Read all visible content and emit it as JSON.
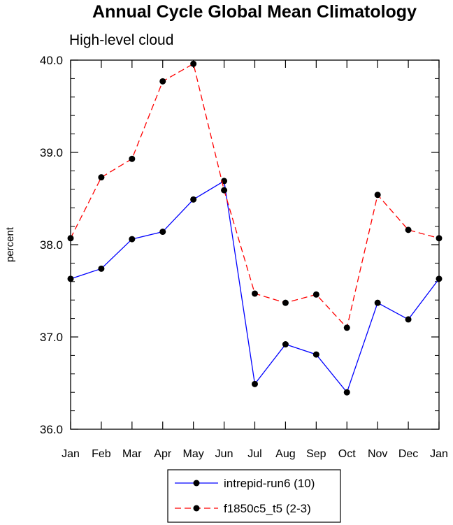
{
  "chart_data": {
    "type": "line",
    "title": "Annual Cycle Global Mean Climatology",
    "subtitle": "High-level cloud",
    "xlabel": "",
    "ylabel": "percent",
    "categories": [
      "Jan",
      "Feb",
      "Mar",
      "Apr",
      "May",
      "Jun",
      "Jul",
      "Aug",
      "Sep",
      "Oct",
      "Nov",
      "Dec",
      "Jan"
    ],
    "ylim": [
      36.0,
      40.0
    ],
    "yticks": [
      36.0,
      37.0,
      38.0,
      39.0,
      40.0
    ],
    "ytick_labels": [
      "36.0",
      "37.0",
      "38.0",
      "39.0",
      "40.0"
    ],
    "y_minor_step": 0.2,
    "grid": false,
    "legend_position": "bottom-center",
    "series": [
      {
        "name": "intrepid-run6 (10)",
        "color": "#0000ff",
        "line_style": "solid",
        "marker": "filled-circle",
        "values": [
          37.63,
          37.74,
          38.06,
          38.14,
          38.49,
          38.69,
          36.49,
          36.92,
          36.81,
          36.4,
          37.37,
          37.19,
          37.63
        ]
      },
      {
        "name": "f1850c5_t5 (2-3)",
        "color": "#ff0000",
        "line_style": "dashed",
        "marker": "filled-circle",
        "values": [
          38.07,
          38.73,
          38.93,
          39.77,
          39.96,
          38.59,
          37.47,
          37.37,
          37.46,
          37.1,
          38.54,
          38.16,
          38.07
        ]
      }
    ]
  }
}
